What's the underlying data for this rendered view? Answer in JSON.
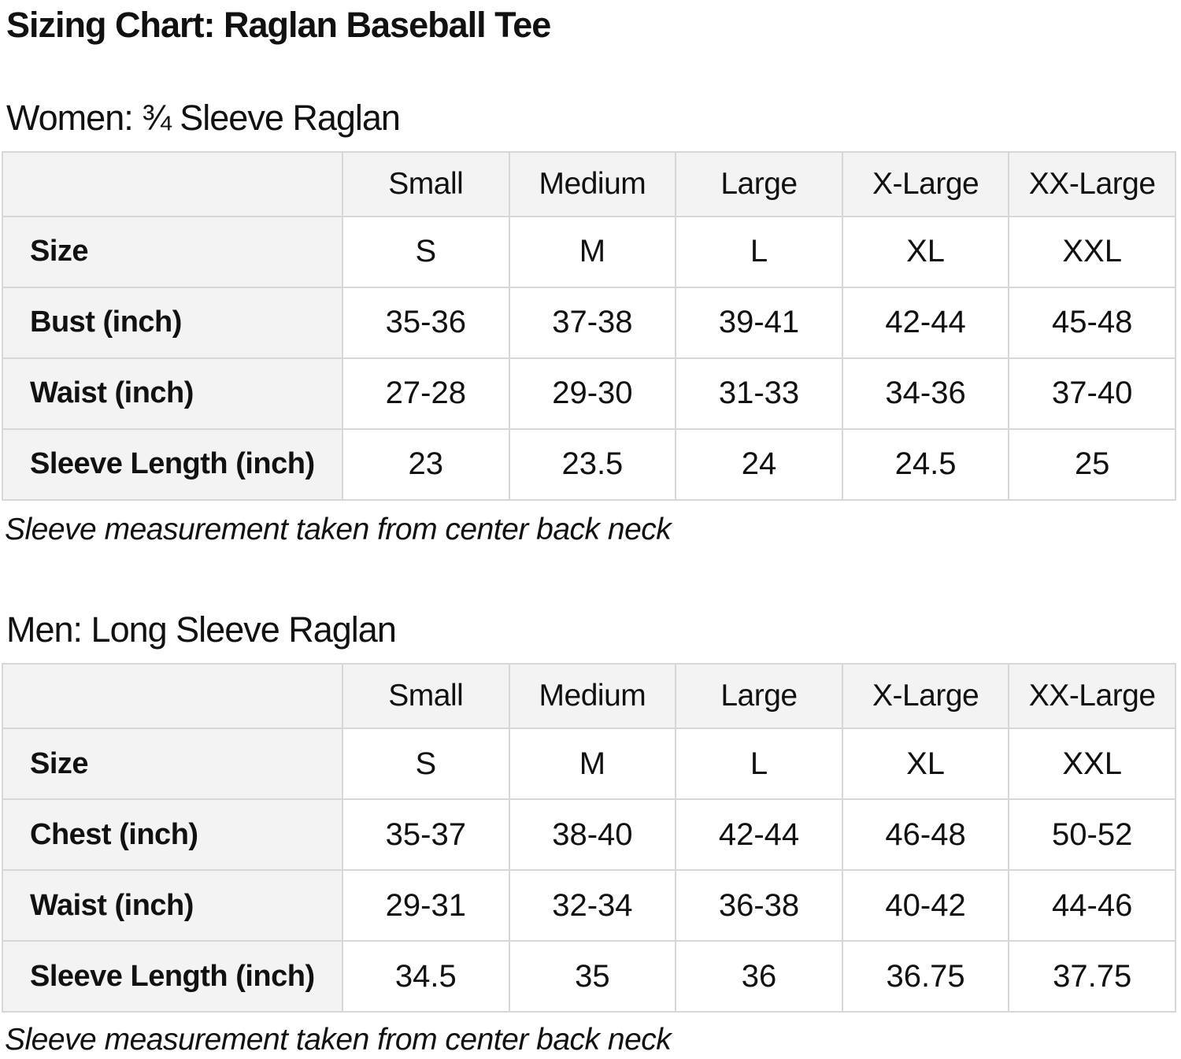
{
  "theme": {
    "page_bg": "#ffffff",
    "text_color": "#111111",
    "table_header_bg": "#f3f3f3",
    "table_border": "#d7d7d7"
  },
  "page": {
    "title": "Sizing Chart: Raglan Baseball Tee"
  },
  "sections": [
    {
      "heading": "Women: ¾ Sleeve Raglan",
      "note": "Sleeve measurement taken from center back neck",
      "table": {
        "column_headers": [
          "Small",
          "Medium",
          "Large",
          "X-Large",
          "XX-Large"
        ],
        "rows": [
          {
            "label": "Size",
            "values": [
              "S",
              "M",
              "L",
              "XL",
              "XXL"
            ]
          },
          {
            "label": "Bust (inch)",
            "values": [
              "35-36",
              "37-38",
              "39-41",
              "42-44",
              "45-48"
            ]
          },
          {
            "label": "Waist (inch)",
            "values": [
              "27-28",
              "29-30",
              "31-33",
              "34-36",
              "37-40"
            ]
          },
          {
            "label": "Sleeve Length (inch)",
            "values": [
              "23",
              "23.5",
              "24",
              "24.5",
              "25"
            ]
          }
        ]
      }
    },
    {
      "heading": "Men: Long Sleeve Raglan",
      "note": "Sleeve measurement taken from center back neck",
      "table": {
        "column_headers": [
          "Small",
          "Medium",
          "Large",
          "X-Large",
          "XX-Large"
        ],
        "rows": [
          {
            "label": "Size",
            "values": [
              "S",
              "M",
              "L",
              "XL",
              "XXL"
            ]
          },
          {
            "label": "Chest (inch)",
            "values": [
              "35-37",
              "38-40",
              "42-44",
              "46-48",
              "50-52"
            ]
          },
          {
            "label": "Waist (inch)",
            "values": [
              "29-31",
              "32-34",
              "36-38",
              "40-42",
              "44-46"
            ]
          },
          {
            "label": "Sleeve Length (inch)",
            "values": [
              "34.5",
              "35",
              "36",
              "36.75",
              "37.75"
            ]
          }
        ]
      }
    }
  ]
}
